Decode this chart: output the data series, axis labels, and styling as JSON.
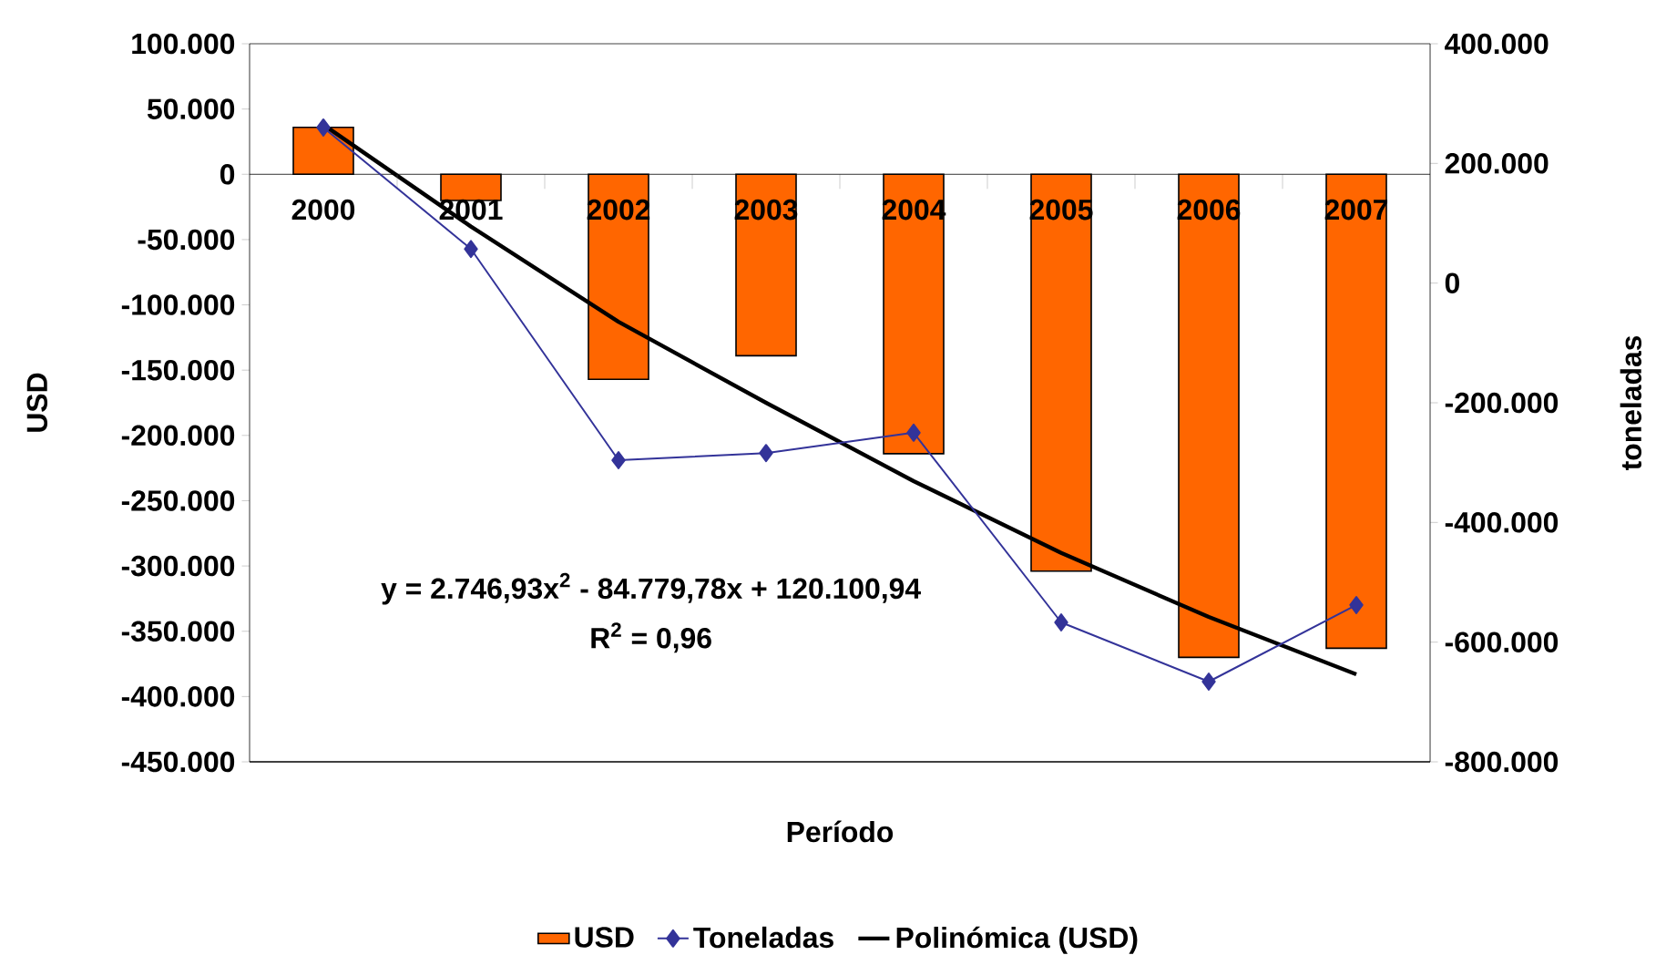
{
  "chart_data": {
    "type": "bar",
    "categories": [
      "2000",
      "2001",
      "2002",
      "2003",
      "2004",
      "2005",
      "2006",
      "2007"
    ],
    "series": [
      {
        "name": "USD",
        "color": "#ff6600",
        "values": [
          36000,
          -20000,
          -157000,
          -139000,
          -214000,
          -304000,
          -370000,
          -363000
        ]
      },
      {
        "name": "Toneladas",
        "type": "line",
        "axis": "y2",
        "color": "#333399",
        "marker": "diamond",
        "values": [
          260000,
          57000,
          -296000,
          -284000,
          -250000,
          -567000,
          -666000,
          -538000
        ]
      },
      {
        "name": "Polinómica (USD)",
        "type": "line",
        "color": "#000000",
        "marker": "none",
        "values": [
          38000,
          -40000,
          -113000,
          -175000,
          -235000,
          -290000,
          -339000,
          -383000
        ]
      }
    ],
    "xlabel": "Período",
    "ylabel": "USD",
    "y2label": "toneladas",
    "ylim": [
      -450000,
      100000
    ],
    "yticks": [
      {
        "value": -450000,
        "label": "-450.000"
      },
      {
        "value": -400000,
        "label": "-400.000"
      },
      {
        "value": -350000,
        "label": "-350.000"
      },
      {
        "value": -300000,
        "label": "-300.000"
      },
      {
        "value": -250000,
        "label": "-250.000"
      },
      {
        "value": -200000,
        "label": "-200.000"
      },
      {
        "value": -150000,
        "label": "-150.000"
      },
      {
        "value": -100000,
        "label": "-100.000"
      },
      {
        "value": -50000,
        "label": "-50.000"
      },
      0,
      {
        "value": 50000,
        "label": "50.000"
      },
      {
        "value": 100000,
        "label": "100.000"
      }
    ],
    "y2lim": [
      -800000,
      400000
    ],
    "y2ticks": [
      {
        "value": -800000,
        "label": "-800.000"
      },
      {
        "value": -600000,
        "label": "-600.000"
      },
      {
        "value": -400000,
        "label": "-400.000"
      },
      {
        "value": -200000,
        "label": "-200.000"
      },
      0,
      {
        "value": 200000,
        "label": "200.000"
      },
      {
        "value": 400000,
        "label": "400.000"
      }
    ],
    "annotations": [
      "y = 2.746,93x$^{2}$ - 84.779,78x + 120.100,94",
      "R$^{2}$ = 0,96"
    ],
    "legend": "bottom"
  }
}
